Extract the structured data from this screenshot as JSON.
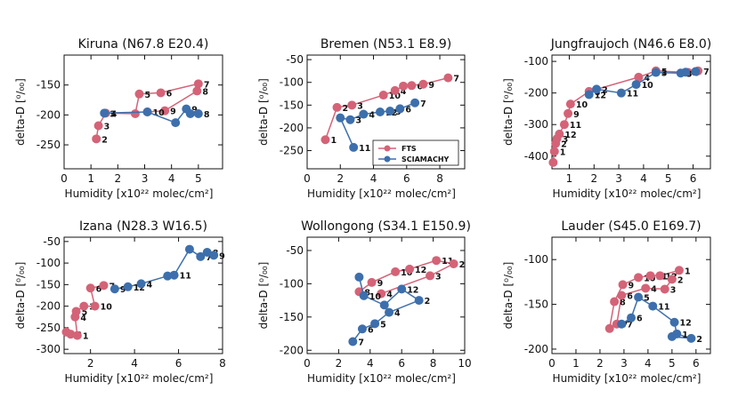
{
  "colors": {
    "fts": "#d46377",
    "sciamachy": "#3d6fac",
    "axis": "#111111"
  },
  "legend": {
    "panel": 1,
    "placement": "lower-right",
    "entries": [
      "FTS",
      "SCIAMACHY"
    ]
  },
  "chart_data": [
    {
      "type": "line",
      "title": "Kiruna (N67.8 E20.4)",
      "ylabel": "delta-D [⁰/₀₀]",
      "xlabel": "Humidity [x10²² molec/cm²]",
      "xlim": [
        0,
        5.9
      ],
      "ylim": [
        -290,
        -100
      ],
      "xticks": [
        0,
        1,
        2,
        3,
        4,
        5
      ],
      "yticks": [
        -250,
        -200,
        -150
      ],
      "series": [
        {
          "name": "FTS",
          "points": [
            [
              1.2,
              -240,
              "2"
            ],
            [
              1.28,
              -218,
              "3"
            ],
            [
              1.55,
              -197,
              "4"
            ],
            [
              2.65,
              -198,
              ""
            ],
            [
              2.8,
              -165,
              "5"
            ],
            [
              3.6,
              -163,
              "6"
            ],
            [
              5.0,
              -148,
              "7"
            ],
            [
              4.95,
              -160,
              "8"
            ],
            [
              3.75,
              -193,
              "9"
            ],
            [
              3.1,
              -195,
              "10"
            ]
          ]
        },
        {
          "name": "SCIAMACHY",
          "points": [
            [
              1.5,
              -197,
              "3"
            ],
            [
              3.1,
              -195,
              ""
            ],
            [
              4.15,
              -213,
              ""
            ],
            [
              4.55,
              -190,
              "9"
            ],
            [
              4.7,
              -198,
              ""
            ],
            [
              5.0,
              -198,
              "8"
            ]
          ]
        }
      ]
    },
    {
      "type": "line",
      "title": "Bremen (N53.1 E8.9)",
      "ylabel": "delta-D [⁰/₀₀]",
      "xlabel": "Humidity [x10²² molec/cm²]",
      "xlim": [
        0,
        9.5
      ],
      "ylim": [
        -290,
        -40
      ],
      "xticks": [
        0,
        2,
        4,
        6,
        8
      ],
      "yticks": [
        -250,
        -200,
        -150,
        -100,
        -50
      ],
      "series": [
        {
          "name": "FTS",
          "points": [
            [
              1.1,
              -226,
              "1"
            ],
            [
              1.8,
              -155,
              "2"
            ],
            [
              2.7,
              -150,
              "3"
            ],
            [
              4.6,
              -128,
              "10"
            ],
            [
              5.3,
              -118,
              "4"
            ],
            [
              5.8,
              -108,
              "5"
            ],
            [
              6.3,
              -107,
              "6"
            ],
            [
              7.0,
              -104,
              "9"
            ],
            [
              8.5,
              -90,
              "7"
            ]
          ]
        },
        {
          "name": "SCIAMACHY",
          "points": [
            [
              2.8,
              -243,
              "11"
            ],
            [
              2.0,
              -178,
              ""
            ],
            [
              2.6,
              -182,
              "3"
            ],
            [
              3.4,
              -170,
              "4"
            ],
            [
              4.4,
              -165,
              "12"
            ],
            [
              5.0,
              -163,
              "5"
            ],
            [
              5.6,
              -158,
              "6"
            ],
            [
              6.5,
              -145,
              "7"
            ]
          ]
        }
      ]
    },
    {
      "type": "line",
      "title": "Jungfraujoch (N46.6 E8.0)",
      "ylabel": "delta-D [⁰/₀₀]",
      "xlabel": "Humidity [x10²² molec/cm²]",
      "xlim": [
        0.3,
        6.7
      ],
      "ylim": [
        -440,
        -80
      ],
      "xticks": [
        1,
        2,
        3,
        4,
        5,
        6
      ],
      "yticks": [
        -400,
        -300,
        -200,
        -100
      ],
      "series": [
        {
          "name": "FTS",
          "points": [
            [
              0.35,
              -420,
              ""
            ],
            [
              0.4,
              -385,
              "1"
            ],
            [
              0.45,
              -360,
              "2"
            ],
            [
              0.5,
              -345,
              "3"
            ],
            [
              0.6,
              -330,
              "12"
            ],
            [
              0.8,
              -300,
              "11"
            ],
            [
              0.95,
              -265,
              "9"
            ],
            [
              1.05,
              -235,
              "10"
            ],
            [
              1.8,
              -195,
              "8"
            ],
            [
              3.8,
              -150,
              "4"
            ],
            [
              4.5,
              -130,
              "5"
            ],
            [
              5.8,
              -135,
              "6"
            ],
            [
              6.2,
              -130,
              "7"
            ]
          ]
        },
        {
          "name": "SCIAMACHY",
          "points": [
            [
              1.8,
              -205,
              "12"
            ],
            [
              2.1,
              -188,
              "2"
            ],
            [
              3.1,
              -200,
              "11"
            ],
            [
              3.7,
              -173,
              "10"
            ],
            [
              4.5,
              -135,
              "3"
            ],
            [
              5.5,
              -137,
              "8"
            ],
            [
              5.7,
              -134,
              "6"
            ],
            [
              6.1,
              -132,
              ""
            ]
          ]
        }
      ]
    },
    {
      "type": "line",
      "title": "Izana (N28.3 W16.5)",
      "ylabel": "delta-D [⁰/₀₀]",
      "xlabel": "Humidity [x10²² molec/cm²]",
      "xlim": [
        0.8,
        8.0
      ],
      "ylim": [
        -310,
        -40
      ],
      "xticks": [
        2,
        4,
        6,
        8
      ],
      "yticks": [
        -300,
        -250,
        -200,
        -150,
        -100,
        -50
      ],
      "series": [
        {
          "name": "FTS",
          "points": [
            [
              0.9,
              -260,
              ""
            ],
            [
              1.1,
              -265,
              "2"
            ],
            [
              1.4,
              -268,
              "1"
            ],
            [
              1.3,
              -225,
              "4"
            ],
            [
              1.35,
              -212,
              "5"
            ],
            [
              1.7,
              -200,
              "3"
            ],
            [
              2.2,
              -200,
              "10"
            ],
            [
              2.0,
              -158,
              "6"
            ],
            [
              2.6,
              -152,
              "7"
            ]
          ]
        },
        {
          "name": "SCIAMACHY",
          "points": [
            [
              3.1,
              -160,
              "9"
            ],
            [
              3.7,
              -155,
              "12"
            ],
            [
              4.3,
              -148,
              "4"
            ],
            [
              5.5,
              -130,
              ""
            ],
            [
              5.8,
              -128,
              "11"
            ],
            [
              6.5,
              -68,
              ""
            ],
            [
              7.0,
              -85,
              "7"
            ],
            [
              7.3,
              -75,
              "8"
            ],
            [
              7.6,
              -82,
              "9"
            ]
          ]
        }
      ]
    },
    {
      "type": "line",
      "title": "Wollongong (S34.1 E150.9)",
      "ylabel": "delta-D [⁰/₀₀]",
      "xlabel": "Humidity [x10²² molec/cm²]",
      "xlim": [
        0,
        10
      ],
      "ylim": [
        -205,
        -30
      ],
      "xticks": [
        0,
        2,
        4,
        6,
        8,
        10
      ],
      "yticks": [
        -200,
        -150,
        -100,
        -50
      ],
      "series": [
        {
          "name": "FTS",
          "points": [
            [
              3.3,
              -112,
              "8"
            ],
            [
              4.1,
              -98,
              "9"
            ],
            [
              5.6,
              -82,
              "10"
            ],
            [
              6.5,
              -78,
              "12"
            ],
            [
              8.2,
              -65,
              "11"
            ],
            [
              9.3,
              -70,
              "2"
            ],
            [
              7.8,
              -88,
              "3"
            ],
            [
              4.7,
              -115,
              "4"
            ]
          ]
        },
        {
          "name": "SCIAMACHY",
          "points": [
            [
              2.9,
              -187,
              "7"
            ],
            [
              3.5,
              -168,
              "6"
            ],
            [
              4.3,
              -160,
              "5"
            ],
            [
              5.2,
              -143,
              "4"
            ],
            [
              7.1,
              -125,
              "2"
            ],
            [
              6.0,
              -108,
              "12"
            ],
            [
              4.9,
              -132,
              ""
            ],
            [
              3.6,
              -118,
              "10"
            ],
            [
              3.3,
              -90,
              ""
            ]
          ]
        }
      ]
    },
    {
      "type": "line",
      "title": "Lauder (S45.0 E169.7)",
      "ylabel": "delta-D [⁰/₀₀]",
      "xlabel": "Humidity [x10²² molec/cm²]",
      "xlim": [
        0,
        6.6
      ],
      "ylim": [
        -205,
        -75
      ],
      "xticks": [
        0,
        1,
        2,
        3,
        4,
        5,
        6
      ],
      "yticks": [
        -200,
        -150,
        -100
      ],
      "series": [
        {
          "name": "FTS",
          "points": [
            [
              2.4,
              -177,
              ""
            ],
            [
              2.6,
              -147,
              "8"
            ],
            [
              2.95,
              -128,
              "9"
            ],
            [
              3.6,
              -120,
              "10"
            ],
            [
              4.1,
              -118,
              "11"
            ],
            [
              4.5,
              -118,
              "12"
            ],
            [
              5.3,
              -112,
              "1"
            ],
            [
              5.0,
              -122,
              "2"
            ],
            [
              4.7,
              -133,
              "3"
            ],
            [
              3.9,
              -132,
              "4"
            ],
            [
              2.9,
              -140,
              "6"
            ],
            [
              2.7,
              -172,
              "7"
            ]
          ]
        },
        {
          "name": "SCIAMACHY",
          "points": [
            [
              2.9,
              -172,
              "7"
            ],
            [
              3.3,
              -165,
              "6"
            ],
            [
              3.6,
              -142,
              "5"
            ],
            [
              4.2,
              -152,
              "11"
            ],
            [
              5.1,
              -170,
              "12"
            ],
            [
              5.2,
              -183,
              "1"
            ],
            [
              5.8,
              -188,
              "2"
            ],
            [
              5.0,
              -186,
              ""
            ]
          ]
        }
      ]
    }
  ]
}
